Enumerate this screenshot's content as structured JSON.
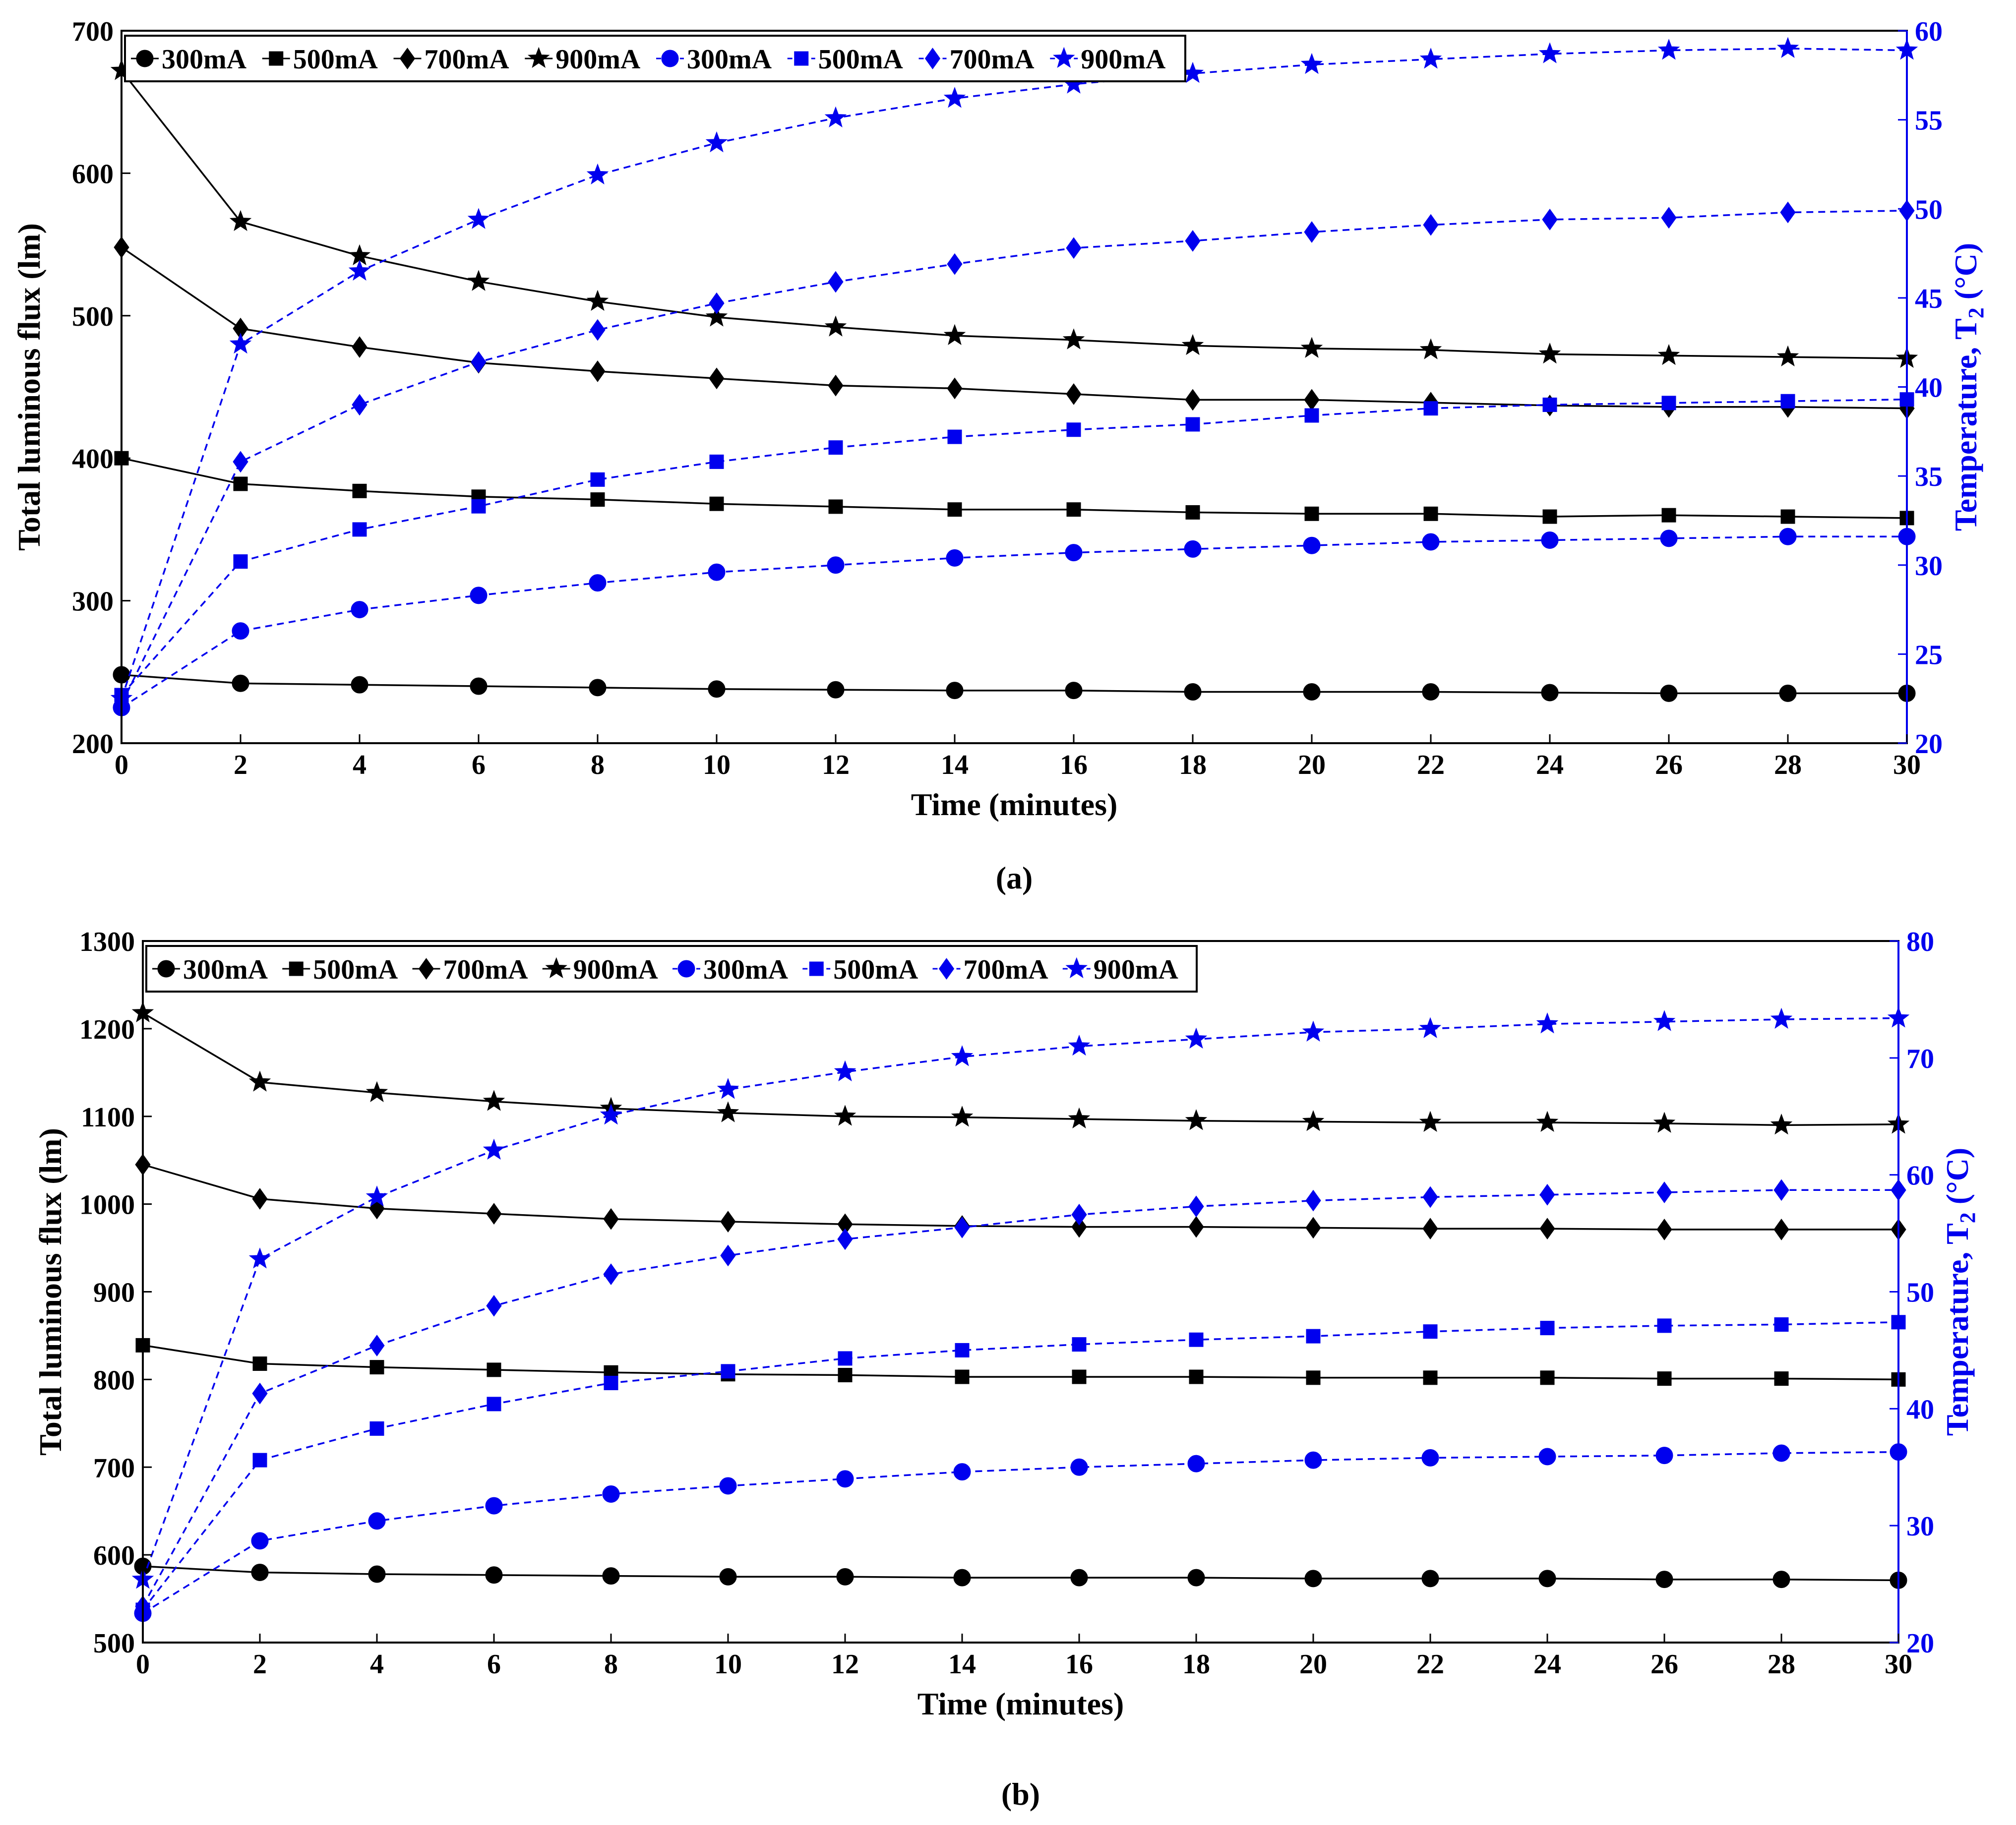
{
  "panels": [
    {
      "caption": "(a)",
      "chart_data": {
        "type": "line",
        "xlabel": "Time (minutes)",
        "ylabel": "Total luminous flux (lm)",
        "y2label_main": "Temperature, T",
        "y2label_sub": "2",
        "y2label_unit": " (°C)",
        "xlim": [
          0,
          30
        ],
        "ylim": [
          200,
          700
        ],
        "y2lim": [
          20,
          60
        ],
        "xticks": [
          0,
          2,
          4,
          6,
          8,
          10,
          12,
          14,
          16,
          18,
          20,
          22,
          24,
          26,
          28,
          30
        ],
        "yticks": [
          200,
          300,
          400,
          500,
          600,
          700
        ],
        "y2ticks": [
          20,
          25,
          30,
          35,
          40,
          45,
          50,
          55,
          60
        ],
        "legend_position": "top-left",
        "x": [
          0,
          2,
          4,
          6,
          8,
          10,
          12,
          14,
          16,
          18,
          20,
          22,
          24,
          26,
          28,
          30
        ],
        "series": [
          {
            "name": "300mA",
            "axis": "left",
            "color": "#000000",
            "marker": "circle",
            "dashed": false,
            "values": [
              248,
              242,
              241,
              240,
              239,
              238,
              237.5,
              237,
              237,
              236,
              236,
              236,
              235.5,
              235,
              235,
              235
            ]
          },
          {
            "name": "500mA",
            "axis": "left",
            "color": "#000000",
            "marker": "square",
            "dashed": false,
            "values": [
              400,
              382,
              377,
              373,
              371,
              368,
              366,
              364,
              364,
              362,
              361,
              361,
              359,
              360,
              359,
              358
            ]
          },
          {
            "name": "700mA",
            "axis": "left",
            "color": "#000000",
            "marker": "diamond",
            "dashed": false,
            "values": [
              548,
              491,
              478,
              467,
              461,
              456,
              451,
              449,
              445,
              441,
              441,
              439,
              437,
              436,
              436,
              435
            ]
          },
          {
            "name": "900mA",
            "axis": "left",
            "color": "#000000",
            "marker": "star",
            "dashed": false,
            "values": [
              672,
              566,
              542,
              524,
              510,
              499,
              492,
              486,
              483,
              479,
              477,
              476,
              473,
              472,
              471,
              470
            ]
          },
          {
            "name": "300mA",
            "axis": "right",
            "color": "#0000ee",
            "marker": "circle",
            "dashed": true,
            "values": [
              22,
              26.3,
              27.5,
              28.3,
              29,
              29.6,
              30,
              30.4,
              30.7,
              30.9,
              31.1,
              31.3,
              31.4,
              31.5,
              31.6,
              31.6
            ]
          },
          {
            "name": "500mA",
            "axis": "right",
            "color": "#0000ee",
            "marker": "square",
            "dashed": true,
            "values": [
              22.7,
              30.2,
              32,
              33.3,
              34.8,
              35.8,
              36.6,
              37.2,
              37.6,
              37.9,
              38.4,
              38.8,
              39,
              39.1,
              39.2,
              39.3
            ]
          },
          {
            "name": "700mA",
            "axis": "right",
            "color": "#0000ee",
            "marker": "diamond",
            "dashed": true,
            "values": [
              22.2,
              35.8,
              39,
              41.4,
              43.2,
              44.7,
              45.9,
              46.9,
              47.8,
              48.2,
              48.7,
              49.1,
              49.4,
              49.5,
              49.8,
              49.9
            ]
          },
          {
            "name": "900mA",
            "axis": "right",
            "color": "#0000ee",
            "marker": "star",
            "dashed": true,
            "values": [
              22.5,
              42.4,
              46.5,
              49.4,
              51.9,
              53.7,
              55.1,
              56.2,
              57,
              57.6,
              58.1,
              58.4,
              58.7,
              58.9,
              59,
              58.9
            ]
          }
        ]
      }
    },
    {
      "caption": "(b)",
      "chart_data": {
        "type": "line",
        "xlabel": "Time (minutes)",
        "ylabel": "Total luminous flux (lm)",
        "y2label_main": "Temperature, T",
        "y2label_sub": "2",
        "y2label_unit": " (°C)",
        "xlim": [
          0,
          30
        ],
        "ylim": [
          500,
          1300
        ],
        "y2lim": [
          20,
          80
        ],
        "xticks": [
          0,
          2,
          4,
          6,
          8,
          10,
          12,
          14,
          16,
          18,
          20,
          22,
          24,
          26,
          28,
          30
        ],
        "yticks": [
          500,
          600,
          700,
          800,
          900,
          1000,
          1100,
          1200,
          1300
        ],
        "y2ticks": [
          20,
          30,
          40,
          50,
          60,
          70,
          80
        ],
        "legend_position": "top-left",
        "x": [
          0,
          2,
          4,
          6,
          8,
          10,
          12,
          14,
          16,
          18,
          20,
          22,
          24,
          26,
          28,
          30
        ],
        "series": [
          {
            "name": "300mA",
            "axis": "left",
            "color": "#000000",
            "marker": "circle",
            "dashed": false,
            "values": [
              587,
              580,
              578,
              577,
              576,
              575,
              575,
              574,
              574,
              574,
              573,
              573,
              573,
              572,
              572,
              571
            ]
          },
          {
            "name": "500mA",
            "axis": "left",
            "color": "#000000",
            "marker": "square",
            "dashed": false,
            "values": [
              839,
              818,
              814,
              811,
              808,
              806,
              805,
              803,
              803,
              803,
              802,
              802,
              802,
              801,
              801,
              800
            ]
          },
          {
            "name": "700mA",
            "axis": "left",
            "color": "#000000",
            "marker": "diamond",
            "dashed": false,
            "values": [
              1045,
              1006,
              995,
              989,
              983,
              980,
              977,
              975,
              974,
              974,
              973,
              972,
              972,
              971,
              971,
              971
            ]
          },
          {
            "name": "900mA",
            "axis": "left",
            "color": "#000000",
            "marker": "star",
            "dashed": false,
            "values": [
              1218,
              1139,
              1127,
              1117,
              1109,
              1104,
              1100,
              1099,
              1097,
              1095,
              1094,
              1093,
              1093,
              1092,
              1090,
              1091
            ]
          },
          {
            "name": "300mA",
            "axis": "right",
            "color": "#0000ee",
            "marker": "circle",
            "dashed": true,
            "values": [
              22.5,
              28.7,
              30.4,
              31.7,
              32.7,
              33.4,
              34,
              34.6,
              35,
              35.3,
              35.6,
              35.8,
              35.9,
              36,
              36.2,
              36.3
            ]
          },
          {
            "name": "500mA",
            "axis": "right",
            "color": "#0000ee",
            "marker": "square",
            "dashed": true,
            "values": [
              22.8,
              35.6,
              38.3,
              40.4,
              42.2,
              43.2,
              44.3,
              45,
              45.5,
              45.9,
              46.2,
              46.6,
              46.9,
              47.1,
              47.2,
              47.4
            ]
          },
          {
            "name": "700mA",
            "axis": "right",
            "color": "#0000ee",
            "marker": "diamond",
            "dashed": true,
            "values": [
              23.1,
              41.3,
              45.4,
              48.8,
              51.5,
              53.1,
              54.5,
              55.5,
              56.6,
              57.3,
              57.8,
              58.1,
              58.3,
              58.5,
              58.7,
              58.7
            ]
          },
          {
            "name": "900mA",
            "axis": "right",
            "color": "#0000ee",
            "marker": "star",
            "dashed": true,
            "values": [
              25.4,
              52.8,
              58.1,
              62.1,
              65.1,
              67.3,
              68.8,
              70.1,
              71,
              71.6,
              72.2,
              72.5,
              72.9,
              73.1,
              73.3,
              73.4
            ]
          }
        ]
      }
    }
  ]
}
